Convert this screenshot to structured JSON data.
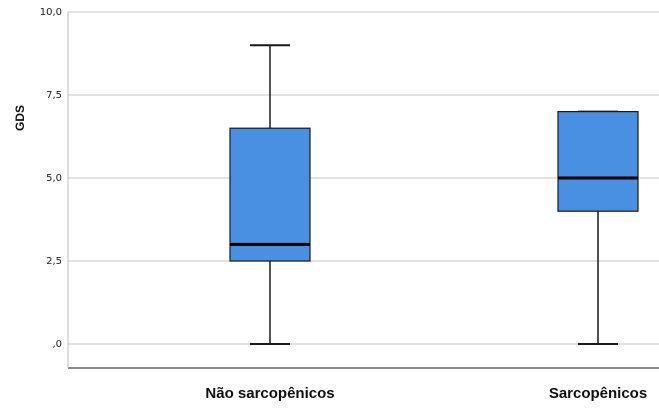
{
  "chart_data": {
    "type": "boxplot",
    "title": "",
    "xlabel": "",
    "ylabel": "GDS",
    "ylim": [
      0,
      10
    ],
    "y_ticks": [
      {
        "value": 0,
        "label": ",0"
      },
      {
        "value": 2.5,
        "label": "2,5"
      },
      {
        "value": 5,
        "label": "5,0"
      },
      {
        "value": 7.5,
        "label": "7,5"
      },
      {
        "value": 10,
        "label": "10,0"
      }
    ],
    "grid": true,
    "categories": [
      "Não sarcopênicos",
      "Sarcopênicos"
    ],
    "boxes": [
      {
        "category": "Não sarcopênicos",
        "min": 0,
        "q1": 2.5,
        "median": 3,
        "q3": 6.5,
        "max": 9
      },
      {
        "category": "Sarcopênicos",
        "min": 0,
        "q1": 4,
        "median": 5,
        "q3": 7,
        "max": 7
      }
    ],
    "colors": {
      "box_fill": "#4a90e2",
      "box_stroke": "#1a1a1a",
      "grid": "#d9d9d9"
    }
  }
}
